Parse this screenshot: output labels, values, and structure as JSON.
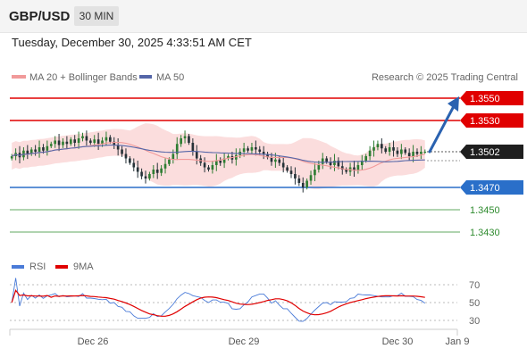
{
  "header": {
    "pair": "GBP/USD",
    "timeframe": "30 MIN"
  },
  "datetime": "Tuesday, December 30, 2025 4:33:51 AM CET",
  "legend": {
    "ma_bollinger": "MA 20 + Bollinger Bands",
    "ma50": "MA 50"
  },
  "credit": "Research © 2025 Trading Central",
  "colors": {
    "up": "#2e7d32",
    "down": "#263238",
    "resistance": "#e00000",
    "support": "#2a6fc9",
    "target": "#2e8b2e",
    "band": "#fbdddd",
    "ma20": "#f19a9a",
    "ma50": "#5566a8",
    "arrow": "#2a62b0",
    "rsi": "#4a7bd8",
    "rsi_ma": "#e00000"
  },
  "chart_data": [
    {
      "type": "candlestick",
      "symbol": "GBP/USD",
      "timeframe": "30 MIN",
      "ylim": [
        1.341,
        1.3562
      ],
      "current_price": "1.3502",
      "price_levels": [
        {
          "label": "1.3550",
          "value": 1.355,
          "kind": "resistance"
        },
        {
          "label": "1.3530",
          "value": 1.353,
          "kind": "resistance"
        },
        {
          "label": "1.3470",
          "value": 1.347,
          "kind": "pivot"
        },
        {
          "label": "1.3450",
          "value": 1.345,
          "kind": "target"
        },
        {
          "label": "1.3430",
          "value": 1.343,
          "kind": "target"
        }
      ],
      "x_ticks": [
        "Dec 26",
        "Dec 29",
        "Dec 30",
        "Jan 9"
      ],
      "forecast": {
        "from": 1.3502,
        "to": 1.355
      },
      "series": [
        {
          "name": "MA 20 + Bollinger Bands"
        },
        {
          "name": "MA 50"
        }
      ],
      "closes": [
        1.3498,
        1.3501,
        1.3497,
        1.3503,
        1.35,
        1.3504,
        1.3502,
        1.3506,
        1.3503,
        1.3507,
        1.3509,
        1.3512,
        1.3508,
        1.3511,
        1.3509,
        1.3513,
        1.351,
        1.3514,
        1.3516,
        1.3512,
        1.351,
        1.3513,
        1.3509,
        1.3512,
        1.3515,
        1.3511,
        1.3508,
        1.3504,
        1.35,
        1.3496,
        1.3492,
        1.3488,
        1.3484,
        1.348,
        1.3478,
        1.3482,
        1.3486,
        1.3483,
        1.3487,
        1.3491,
        1.3495,
        1.35,
        1.3509,
        1.3514,
        1.3516,
        1.351,
        1.3502,
        1.3496,
        1.3492,
        1.3488,
        1.3486,
        1.349,
        1.3494,
        1.3492,
        1.3496,
        1.3498,
        1.3495,
        1.3499,
        1.3502,
        1.3505,
        1.3503,
        1.3506,
        1.3504,
        1.3502,
        1.35,
        1.3497,
        1.3493,
        1.3495,
        1.3492,
        1.3488,
        1.3485,
        1.3482,
        1.3478,
        1.3474,
        1.347,
        1.3476,
        1.3481,
        1.3486,
        1.3491,
        1.3496,
        1.3493,
        1.349,
        1.3494,
        1.3489,
        1.3486,
        1.3484,
        1.3488,
        1.3485,
        1.349,
        1.3494,
        1.3498,
        1.3503,
        1.3506,
        1.3509,
        1.3505,
        1.3502,
        1.3506,
        1.3503,
        1.35,
        1.3504,
        1.3501,
        1.3498,
        1.3502,
        1.35,
        1.3502,
        1.3502
      ]
    },
    {
      "type": "line",
      "name": "RSI",
      "series": [
        {
          "name": "RSI"
        },
        {
          "name": "9MA"
        }
      ],
      "ylim": [
        25,
        75
      ],
      "y_ticks": [
        70,
        50,
        30
      ],
      "y_tick_labels": [
        "70",
        "50",
        "30"
      ]
    }
  ]
}
